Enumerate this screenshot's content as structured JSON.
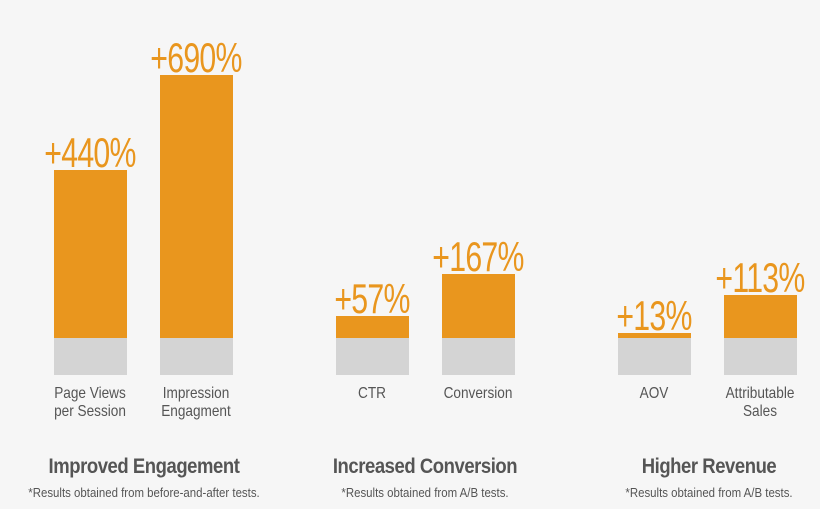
{
  "chart_data": {
    "type": "bar",
    "categories": [
      "Page Views per Session",
      "Impression Engagment",
      "CTR",
      "Conversion",
      "AOV",
      "Attributable Sales"
    ],
    "category_lines": [
      [
        "Page Views",
        "per Session"
      ],
      [
        "Impression",
        "Engagment"
      ],
      [
        "CTR"
      ],
      [
        "Conversion"
      ],
      [
        "AOV"
      ],
      [
        "Attributable",
        "Sales"
      ]
    ],
    "values": [
      440,
      690,
      57,
      167,
      13,
      113
    ],
    "data_labels": [
      "+440%",
      "+690%",
      "+57%",
      "+167%",
      "+13%",
      "+113%"
    ],
    "unit": "%",
    "groups": [
      {
        "title": "Improved Engagement",
        "note": "*Results obtained from before-and-after tests."
      },
      {
        "title": "Increased Conversion",
        "note": "*Results obtained from A/B tests."
      },
      {
        "title": "Higher Revenue",
        "note": "*Results obtained from A/B tests."
      }
    ],
    "colors": {
      "bar": "#e9961e",
      "base": "#d4d4d4",
      "text": "#555555",
      "background": "#f6f6f6"
    },
    "grid": false,
    "legend": "none"
  }
}
